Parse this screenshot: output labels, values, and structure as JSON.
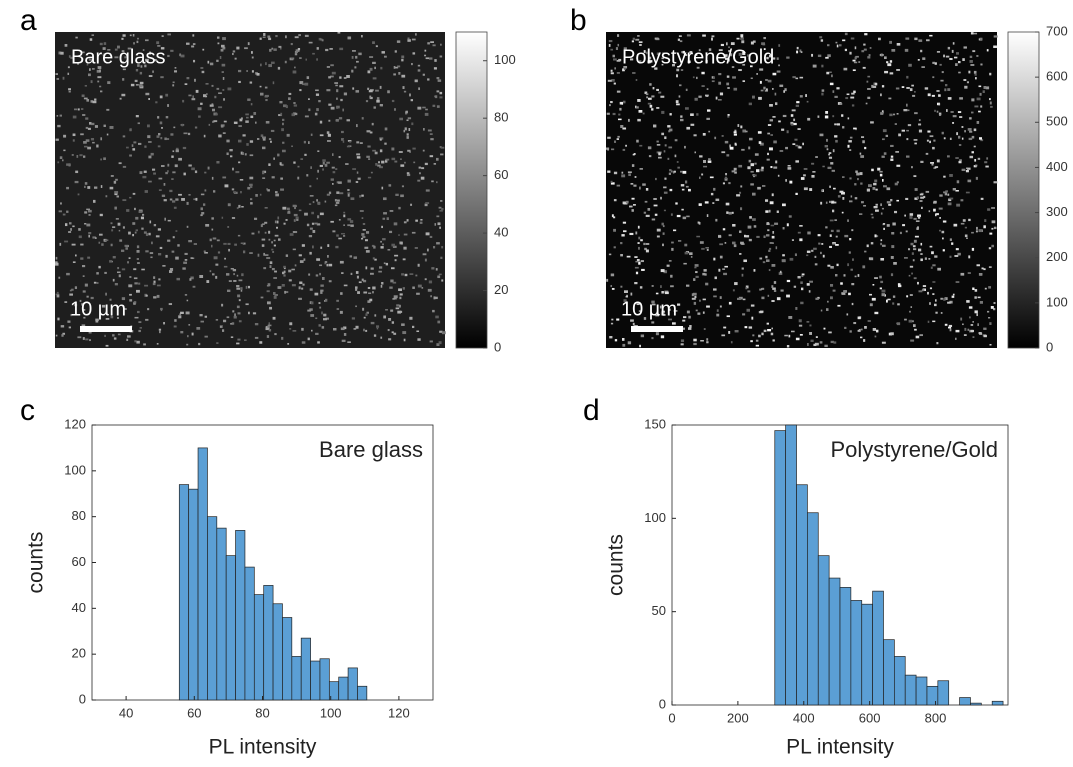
{
  "chart_data": [
    {
      "type": "image",
      "panel": "a",
      "label": "Bare glass",
      "scale_bar": "10 µm",
      "clim": [
        0,
        110
      ],
      "cticks": [
        0,
        20,
        40,
        60,
        80,
        100
      ]
    },
    {
      "type": "image",
      "panel": "b",
      "label": "Polystyrene/Gold",
      "scale_bar": "10 µm",
      "clim": [
        0,
        700
      ],
      "cticks": [
        0,
        100,
        200,
        300,
        400,
        500,
        600,
        700
      ]
    },
    {
      "type": "histogram",
      "panel": "c",
      "label": "Bare glass",
      "xlabel": "PL intensity",
      "ylabel": "counts",
      "color": "#5b9fd5",
      "bins": [
        55.6,
        58.35,
        61.1,
        63.85,
        66.6,
        69.35,
        72.1,
        74.85,
        77.6,
        80.35,
        83.1,
        85.85,
        88.6,
        91.35,
        94.1,
        96.85,
        99.6,
        102.35,
        105.1,
        107.85,
        110.6
      ],
      "values": [
        94,
        92,
        110,
        80,
        75,
        63,
        74,
        58,
        46,
        50,
        42,
        36,
        19,
        27,
        17,
        18,
        8,
        10,
        14,
        6
      ],
      "xlim": [
        30,
        130
      ],
      "ylim": [
        0,
        120
      ],
      "xticks": [
        40,
        60,
        80,
        100,
        120
      ],
      "yticks": [
        0,
        20,
        40,
        60,
        80,
        100,
        120
      ]
    },
    {
      "type": "histogram",
      "panel": "d",
      "label": "Polystyrene/Gold",
      "xlabel": "PL intensity",
      "ylabel": "counts",
      "color": "#5b9fd5",
      "bins": [
        312,
        345,
        378,
        411,
        444,
        477,
        510,
        543,
        576,
        609,
        642,
        675,
        708,
        741,
        774,
        807,
        840,
        873,
        906,
        939,
        972,
        1005
      ],
      "values": [
        147,
        150,
        118,
        103,
        80,
        68,
        63,
        56,
        54,
        61,
        35,
        26,
        16,
        15,
        10,
        13,
        0,
        4,
        1,
        0,
        2
      ],
      "xlim": [
        0,
        1020
      ],
      "ylim": [
        0,
        150
      ],
      "xticks": [
        0,
        200,
        400,
        600,
        800
      ],
      "yticks": [
        0,
        50,
        100,
        150
      ]
    }
  ]
}
